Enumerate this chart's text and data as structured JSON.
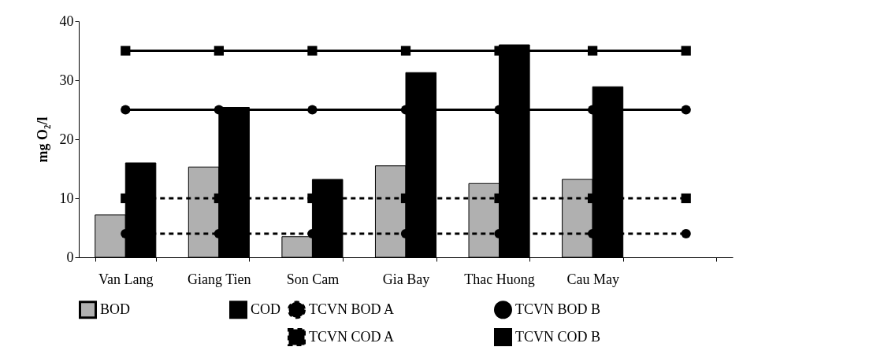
{
  "chart_data": {
    "type": "bar",
    "ylabel": "mg O₂/l",
    "categories": [
      "Van Lang",
      "Giang Tien",
      "Son Cam",
      "Gia Bay",
      "Thac Huong",
      "Cau May",
      null
    ],
    "ylim": [
      0,
      40
    ],
    "yticks": [
      0,
      10,
      20,
      30,
      40
    ],
    "grid": false,
    "legend": "bottom",
    "series": [
      {
        "name": "BOD",
        "color": "#b0b0b0",
        "values": [
          7.2,
          15.3,
          3.5,
          15.5,
          12.5,
          13.2,
          null
        ]
      },
      {
        "name": "COD",
        "color": "#000000",
        "values": [
          16.0,
          25.4,
          13.2,
          31.3,
          36.0,
          28.9,
          null
        ]
      },
      {
        "name": "TCVN BOD A",
        "type": "line",
        "color": "#000000",
        "marker": "circle",
        "line_style": "dashed",
        "values": [
          4,
          4,
          4,
          4,
          4,
          4,
          4
        ]
      },
      {
        "name": "TCVN BOD B",
        "type": "line",
        "color": "#000000",
        "marker": "circle",
        "line_style": "solid",
        "values": [
          25,
          25,
          25,
          25,
          25,
          25,
          25
        ]
      },
      {
        "name": "TCVN COD A",
        "type": "line",
        "color": "#000000",
        "marker": "square",
        "line_style": "dashed",
        "values": [
          10,
          10,
          10,
          10,
          10,
          10,
          10
        ]
      },
      {
        "name": "TCVN COD B",
        "type": "line",
        "color": "#000000",
        "marker": "square",
        "line_style": "solid",
        "values": [
          35,
          35,
          35,
          35,
          35,
          35,
          35
        ]
      }
    ]
  }
}
